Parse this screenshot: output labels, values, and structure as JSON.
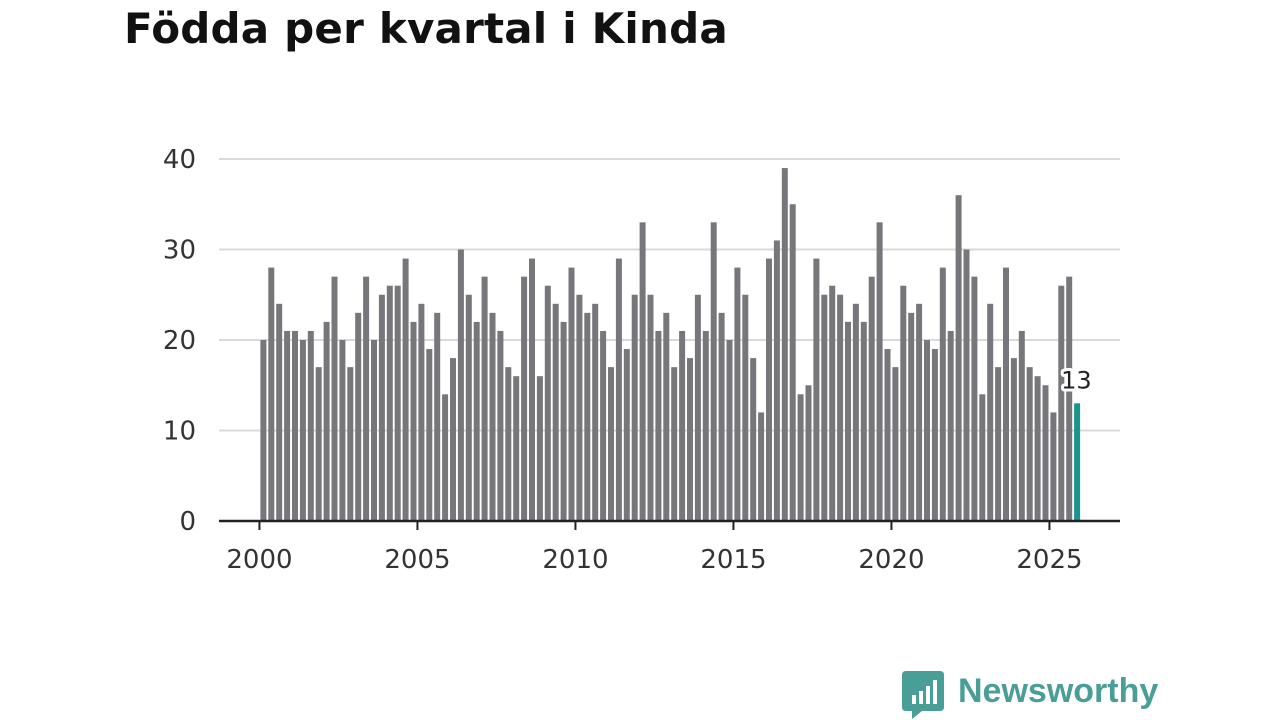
{
  "title": "Födda per kvartal i Kinda",
  "brand": {
    "name": "Newsworthy",
    "color": "#4a9e98"
  },
  "colors": {
    "bar": "#77767b",
    "highlight": "#19958e",
    "grid": "#d9d9d9",
    "axis": "#222222",
    "tick_text": "#333333"
  },
  "chart_data": {
    "type": "bar",
    "title": "Födda per kvartal i Kinda",
    "xlabel": "",
    "ylabel": "",
    "ylim": [
      0,
      40
    ],
    "yticks": [
      0,
      10,
      20,
      30,
      40
    ],
    "xticks": [
      2000,
      2005,
      2010,
      2015,
      2020,
      2025
    ],
    "frequency": "quarterly",
    "start": "2000-Q1",
    "values": [
      20,
      28,
      24,
      21,
      21,
      20,
      21,
      17,
      22,
      27,
      20,
      17,
      23,
      27,
      20,
      25,
      26,
      26,
      29,
      22,
      24,
      19,
      23,
      14,
      18,
      30,
      25,
      22,
      27,
      23,
      21,
      17,
      16,
      27,
      29,
      16,
      26,
      24,
      22,
      28,
      25,
      23,
      24,
      21,
      17,
      29,
      19,
      25,
      33,
      25,
      21,
      23,
      17,
      21,
      18,
      25,
      21,
      33,
      23,
      20,
      28,
      25,
      18,
      12,
      29,
      31,
      39,
      35,
      14,
      15,
      29,
      25,
      26,
      25,
      22,
      24,
      22,
      27,
      33,
      19,
      17,
      26,
      23,
      24,
      20,
      19,
      28,
      21,
      36,
      30,
      27,
      14,
      24,
      17,
      28,
      18,
      21,
      17,
      16,
      15,
      12,
      26,
      27,
      13
    ],
    "highlight": {
      "index": 103,
      "label": "13"
    }
  }
}
